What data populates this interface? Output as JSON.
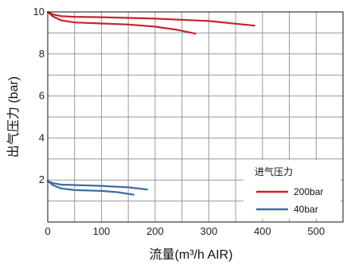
{
  "chart_data": {
    "type": "line",
    "xlabel": "流量(m³/h AIR)",
    "ylabel": "出气压力 (bar)",
    "xlim": [
      0,
      550
    ],
    "ylim": [
      0,
      10
    ],
    "x_ticks": [
      0,
      100,
      200,
      300,
      400,
      500
    ],
    "y_ticks": [
      2,
      4,
      6,
      8,
      10
    ],
    "grid": true,
    "legend_title": "进气压力",
    "legend_position": "bottom-right",
    "series": [
      {
        "name": "200bar",
        "color": "#c8232c",
        "curves": [
          [
            [
              0,
              10.0
            ],
            [
              10,
              9.88
            ],
            [
              25,
              9.8
            ],
            [
              50,
              9.77
            ],
            [
              100,
              9.75
            ],
            [
              200,
              9.68
            ],
            [
              300,
              9.57
            ],
            [
              385,
              9.35
            ]
          ],
          [
            [
              0,
              10.0
            ],
            [
              10,
              9.78
            ],
            [
              25,
              9.6
            ],
            [
              50,
              9.5
            ],
            [
              100,
              9.45
            ],
            [
              150,
              9.4
            ],
            [
              200,
              9.3
            ],
            [
              240,
              9.15
            ],
            [
              275,
              8.97
            ]
          ]
        ]
      },
      {
        "name": "40bar",
        "color": "#3d6ea0",
        "curves": [
          [
            [
              0,
              1.95
            ],
            [
              10,
              1.85
            ],
            [
              25,
              1.78
            ],
            [
              50,
              1.76
            ],
            [
              100,
              1.72
            ],
            [
              150,
              1.65
            ],
            [
              185,
              1.55
            ]
          ],
          [
            [
              0,
              1.95
            ],
            [
              10,
              1.75
            ],
            [
              25,
              1.6
            ],
            [
              50,
              1.52
            ],
            [
              100,
              1.48
            ],
            [
              130,
              1.42
            ],
            [
              160,
              1.3
            ]
          ]
        ]
      }
    ]
  }
}
